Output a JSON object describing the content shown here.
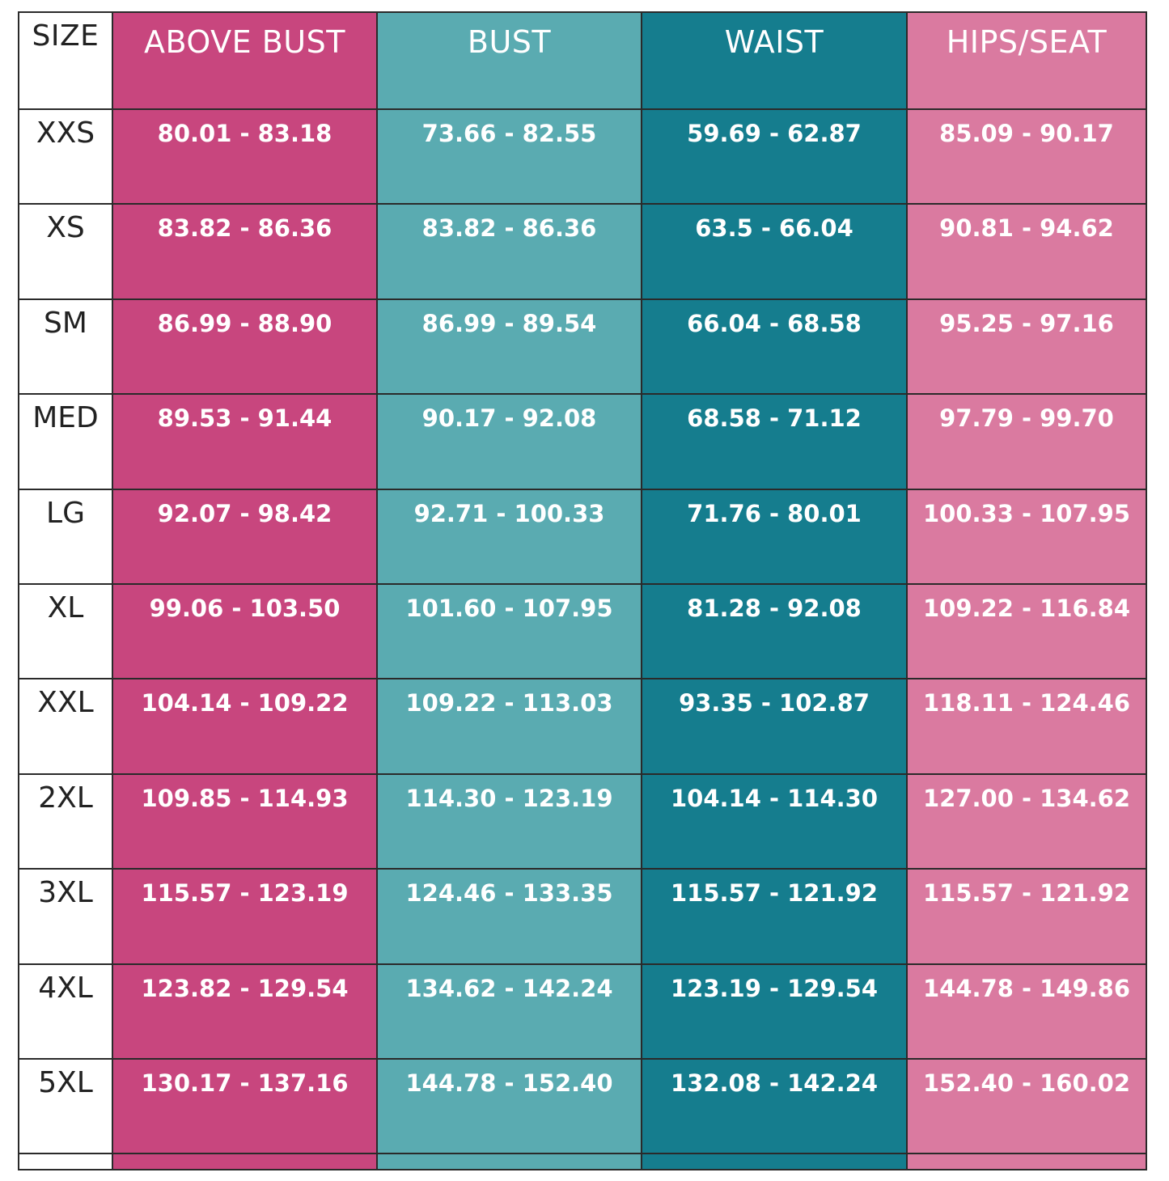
{
  "table": {
    "header": [
      "SIZE",
      "ABOVE BUST",
      "BUST",
      "WAIST",
      "HIPS/SEAT"
    ],
    "rows": [
      [
        "XXS",
        "80.01 - 83.18",
        "73.66 - 82.55",
        "59.69 - 62.87",
        "85.09 - 90.17"
      ],
      [
        "XS",
        "83.82 - 86.36",
        "83.82 - 86.36",
        "63.5 - 66.04",
        "90.81 - 94.62"
      ],
      [
        "SM",
        "86.99 - 88.90",
        "86.99 - 89.54",
        "66.04 - 68.58",
        "95.25 - 97.16"
      ],
      [
        "MED",
        "89.53 - 91.44",
        "90.17 - 92.08",
        "68.58 - 71.12",
        "97.79 - 99.70"
      ],
      [
        "LG",
        "92.07 - 98.42",
        "92.71 - 100.33",
        "71.76 - 80.01",
        "100.33 - 107.95"
      ],
      [
        "XL",
        "99.06 - 103.50",
        "101.60 - 107.95",
        "81.28 - 92.08",
        "109.22 - 116.84"
      ],
      [
        "XXL",
        "104.14 - 109.22",
        "109.22 - 113.03",
        "93.35 - 102.87",
        "118.11 - 124.46"
      ],
      [
        "2XL",
        "109.85 - 114.93",
        "114.30 - 123.19",
        "104.14 - 114.30",
        "127.00 - 134.62"
      ],
      [
        "3XL",
        "115.57 - 123.19",
        "124.46 - 133.35",
        "115.57 - 121.92",
        "115.57 - 121.92"
      ],
      [
        "4XL",
        "123.82 - 129.54",
        "134.62 - 142.24",
        "123.19 - 129.54",
        "144.78 - 149.86"
      ],
      [
        "5XL",
        "130.17 - 137.16",
        "144.78 - 152.40",
        "132.08 - 142.24",
        "152.40 - 160.02"
      ]
    ]
  }
}
